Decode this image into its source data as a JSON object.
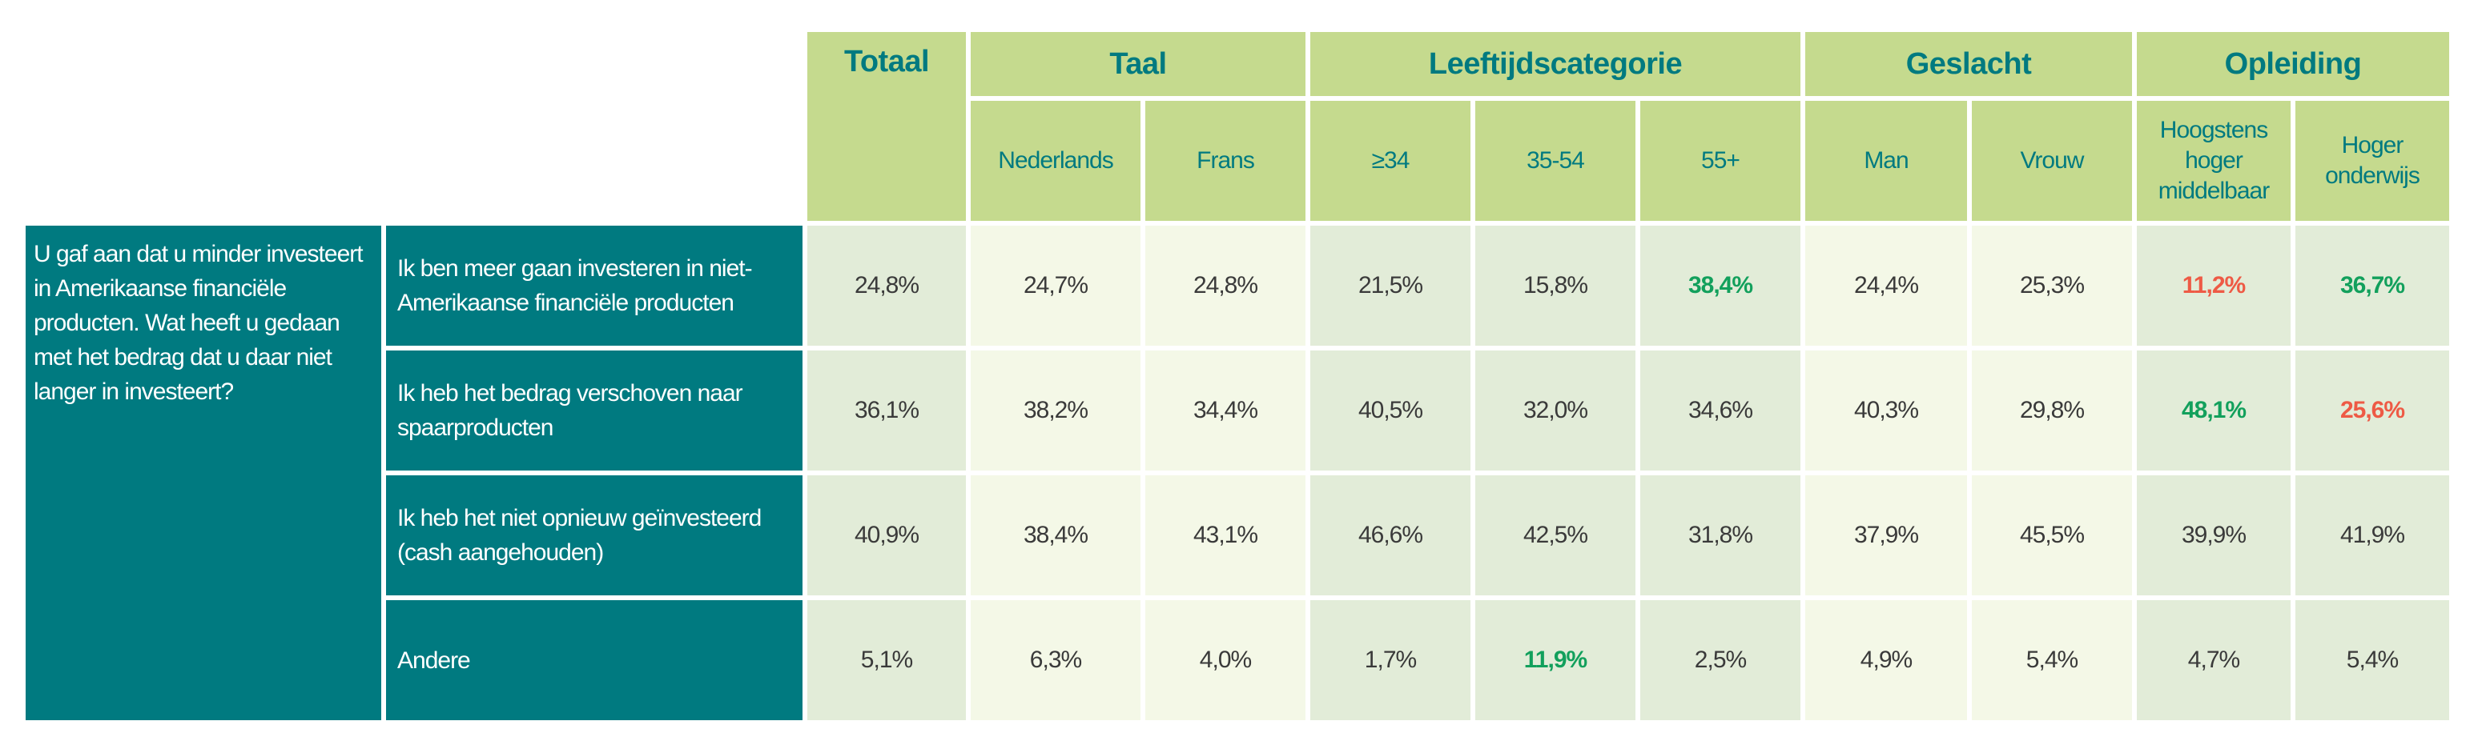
{
  "groups": {
    "totaal": "Totaal",
    "taal": "Taal",
    "leeftijd": "Leeftijdscategorie",
    "geslacht": "Geslacht",
    "opleiding": "Opleiding"
  },
  "subheaders": [
    "Nederlands",
    "Frans",
    "≥34",
    "35-54",
    "55+",
    "Man",
    "Vrouw",
    "Hoogstens hoger middelbaar",
    "Hoger onderwijs"
  ],
  "question": "U gaf aan dat u minder investeert in Amerikaanse financiële producten. Wat heeft u gedaan met het bedrag dat u daar niet langer in investeert?",
  "colors": {
    "highlight_high": "#12a05c",
    "highlight_low": "#ee5a45",
    "teal": "#007a80",
    "header_green": "#c5da8e"
  },
  "rows": [
    {
      "answer": "Ik ben meer gaan investeren in niet-Amerikaanse financiële producten",
      "values": [
        "24,8%",
        "24,7%",
        "24,8%",
        "21,5%",
        "15,8%",
        "38,4%",
        "24,4%",
        "25,3%",
        "11,2%",
        "36,7%"
      ],
      "highlights": [
        "",
        "",
        "",
        "",
        "",
        "high",
        "",
        "",
        "low",
        "high"
      ]
    },
    {
      "answer": "Ik heb het bedrag verschoven naar spaarproducten",
      "values": [
        "36,1%",
        "38,2%",
        "34,4%",
        "40,5%",
        "32,0%",
        "34,6%",
        "40,3%",
        "29,8%",
        "48,1%",
        "25,6%"
      ],
      "highlights": [
        "",
        "",
        "",
        "",
        "",
        "",
        "",
        "",
        "high",
        "low"
      ]
    },
    {
      "answer": "Ik heb het niet opnieuw geïnvesteerd (cash aangehouden)",
      "values": [
        "40,9%",
        "38,4%",
        "43,1%",
        "46,6%",
        "42,5%",
        "31,8%",
        "37,9%",
        "45,5%",
        "39,9%",
        "41,9%"
      ],
      "highlights": [
        "",
        "",
        "",
        "",
        "",
        "",
        "",
        "",
        "",
        ""
      ]
    },
    {
      "answer": "Andere",
      "values": [
        "5,1%",
        "6,3%",
        "4,0%",
        "1,7%",
        "11,9%",
        "2,5%",
        "4,9%",
        "5,4%",
        "4,7%",
        "5,4%"
      ],
      "highlights": [
        "",
        "",
        "",
        "",
        "high",
        "",
        "",
        "",
        "",
        ""
      ]
    }
  ]
}
